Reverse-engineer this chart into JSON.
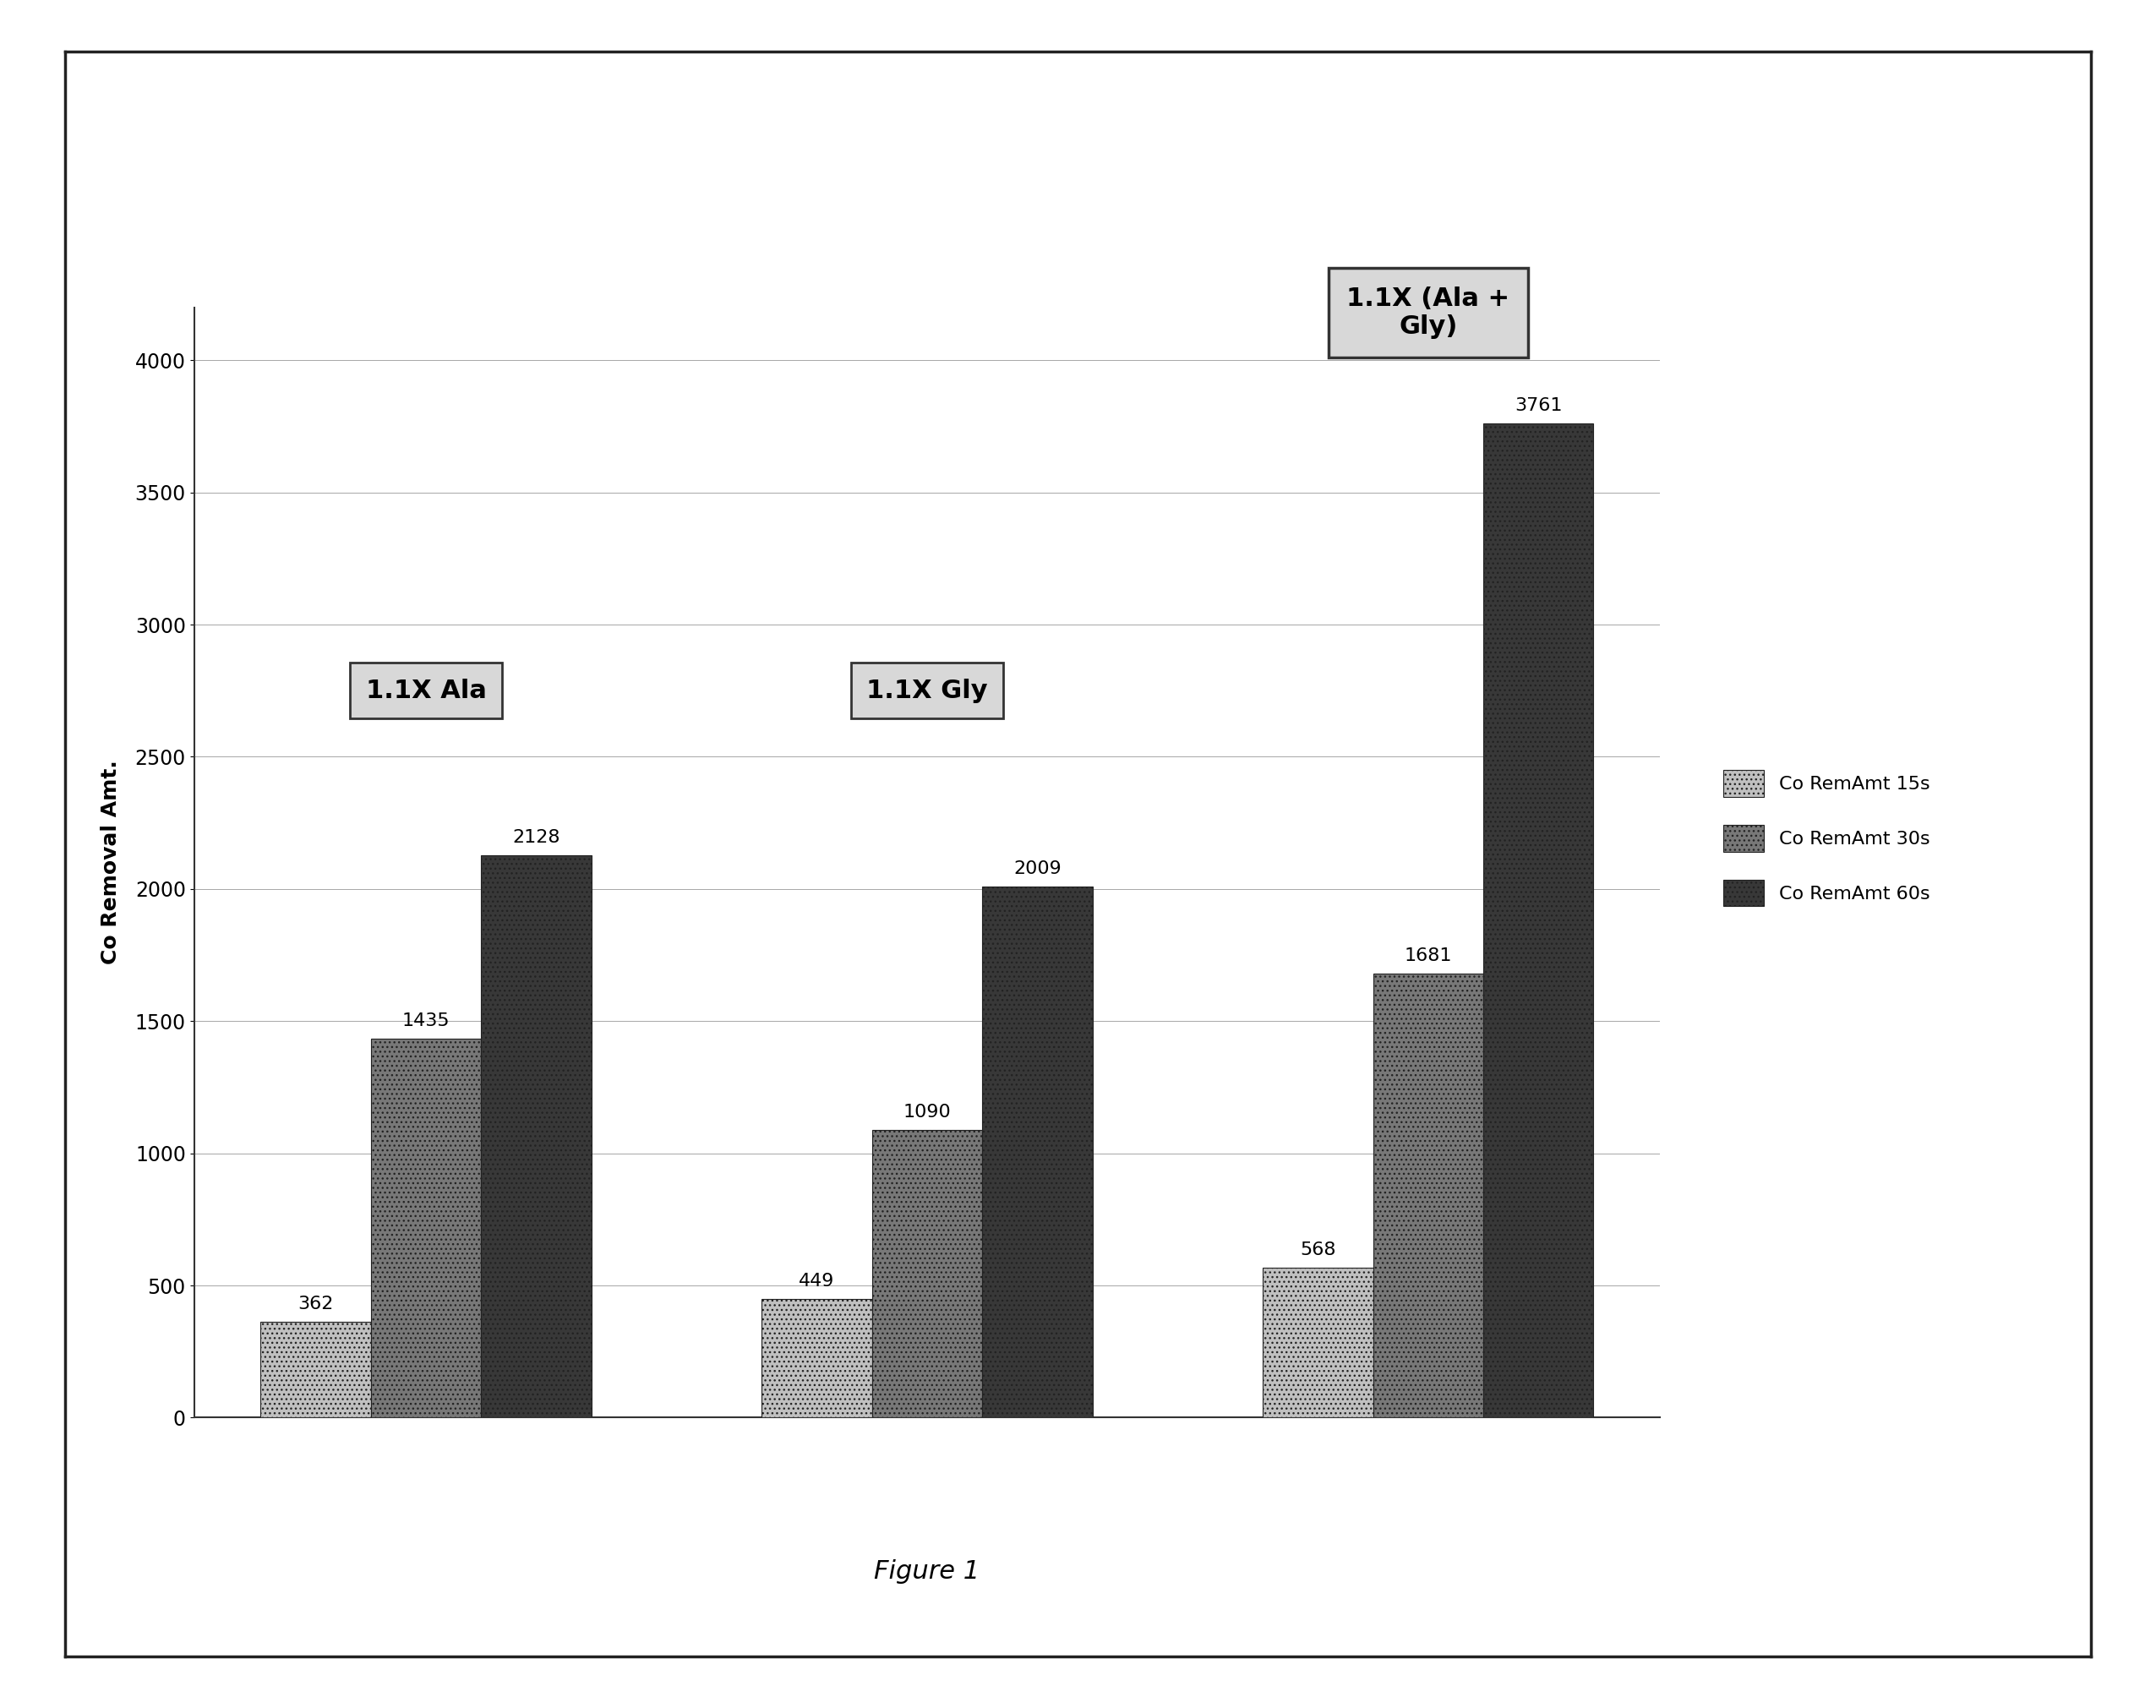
{
  "categories": [
    "1.1X Ala",
    "1.1X Gly",
    "1.1X (Ala + Gly)"
  ],
  "series": {
    "Co RemAmt 15s": [
      362,
      449,
      568
    ],
    "Co RemAmt 30s": [
      1435,
      1090,
      1681
    ],
    "Co RemAmt 60s": [
      2128,
      2009,
      3761
    ]
  },
  "series_colors": {
    "Co RemAmt 15s": "#c0c0c0",
    "Co RemAmt 30s": "#787878",
    "Co RemAmt 60s": "#383838"
  },
  "series_hatch": {
    "Co RemAmt 15s": "...",
    "Co RemAmt 30s": "...",
    "Co RemAmt 60s": "..."
  },
  "bar_width": 0.22,
  "ylabel": "Co Removal Amt.",
  "ylim": [
    0,
    4200
  ],
  "yticks": [
    0,
    500,
    1000,
    1500,
    2000,
    2500,
    3000,
    3500,
    4000
  ],
  "figure_caption": "Figure 1",
  "annotation_box_color": "#d8d8d8",
  "annotation_box_edge": "#333333",
  "grid_color": "#999999",
  "background_color": "#ffffff",
  "outer_background": "#ffffff",
  "label_fontsize": 18,
  "tick_fontsize": 17,
  "bar_value_fontsize": 16,
  "legend_fontsize": 16,
  "caption_fontsize": 22,
  "annot_fontsize": 22
}
